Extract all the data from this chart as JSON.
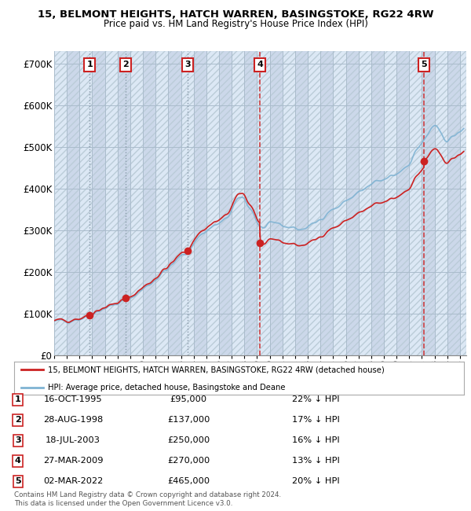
{
  "title": "15, BELMONT HEIGHTS, HATCH WARREN, BASINGSTOKE, RG22 4RW",
  "subtitle": "Price paid vs. HM Land Registry's House Price Index (HPI)",
  "legend_line1": "15, BELMONT HEIGHTS, HATCH WARREN, BASINGSTOKE, RG22 4RW (detached house)",
  "legend_line2": "HPI: Average price, detached house, Basingstoke and Deane",
  "footer": "Contains HM Land Registry data © Crown copyright and database right 2024.\nThis data is licensed under the Open Government Licence v3.0.",
  "xlim": [
    1993.0,
    2025.5
  ],
  "ylim": [
    0,
    730000
  ],
  "yticks": [
    0,
    100000,
    200000,
    300000,
    400000,
    500000,
    600000,
    700000
  ],
  "ytick_labels": [
    "£0",
    "£100K",
    "£200K",
    "£300K",
    "£400K",
    "£500K",
    "£600K",
    "£700K"
  ],
  "sale_dates": [
    1995.79,
    1998.66,
    2003.54,
    2009.23,
    2022.17
  ],
  "sale_prices": [
    95000,
    137000,
    250000,
    270000,
    465000
  ],
  "sale_labels": [
    "1",
    "2",
    "3",
    "4",
    "5"
  ],
  "table_rows": [
    [
      "1",
      "16-OCT-1995",
      "£95,000",
      "22% ↓ HPI"
    ],
    [
      "2",
      "28-AUG-1998",
      "£137,000",
      "17% ↓ HPI"
    ],
    [
      "3",
      "18-JUL-2003",
      "£250,000",
      "16% ↓ HPI"
    ],
    [
      "4",
      "27-MAR-2009",
      "£270,000",
      "13% ↓ HPI"
    ],
    [
      "5",
      "02-MAR-2022",
      "£465,000",
      "20% ↓ HPI"
    ]
  ],
  "hpi_color": "#7fb3d3",
  "sale_color": "#cc2222",
  "grid_color": "#c8d8e8",
  "bg_color": "#ffffff",
  "plot_bg_light": "#dce8f5",
  "plot_bg_dark": "#c8d8ea"
}
